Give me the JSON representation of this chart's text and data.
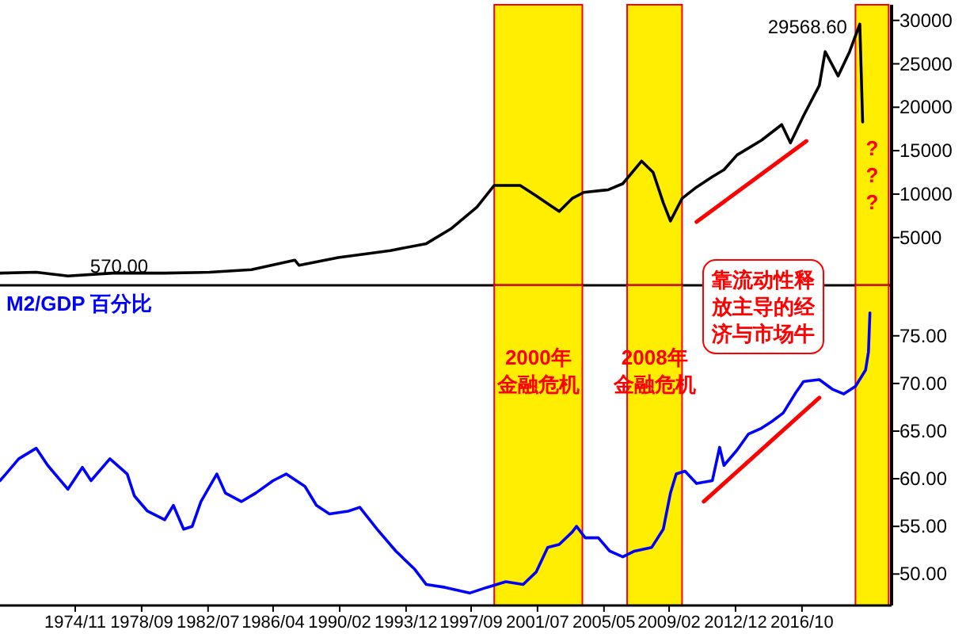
{
  "chart_data": [
    {
      "type": "line",
      "xlim": [
        "1970-07",
        "2021-12"
      ],
      "ylim": [
        -500,
        31800
      ],
      "yticks": [
        5000,
        10000,
        15000,
        20000,
        25000,
        30000
      ],
      "tick_labels": "y",
      "x": [
        "1970-07",
        "1972-08",
        "1974-06",
        "1977-01",
        "1980-01",
        "1982-08",
        "1985-01",
        "1987-07",
        "1987-10",
        "1990-01",
        "1993-01",
        "1995-02",
        "1996-07",
        "1998-01",
        "1999-01",
        "2000-07",
        "2001-06",
        "2002-10",
        "2003-07",
        "2004-03",
        "2005-08",
        "2006-06",
        "2007-07",
        "2008-03",
        "2008-10",
        "2009-03",
        "2009-11",
        "2010-09",
        "2011-08",
        "2012-04",
        "2013-01",
        "2014-06",
        "2015-08",
        "2016-02",
        "2016-11",
        "2017-10",
        "2018-02",
        "2018-11",
        "2019-07",
        "2020-02",
        "2020-04"
      ],
      "series": [
        {
          "color": "#000000",
          "values": [
            900,
            1000,
            570,
            900,
            900,
            1000,
            1300,
            2400,
            1800,
            2700,
            3500,
            4300,
            6000,
            8500,
            11000,
            11000,
            9800,
            8000,
            9500,
            10200,
            10500,
            11200,
            13800,
            12500,
            9000,
            6900,
            9500,
            10800,
            12000,
            12800,
            14500,
            16200,
            18000,
            15900,
            19000,
            22500,
            26400,
            23600,
            26400,
            29568.6,
            18300
          ]
        },
        {
          "type": "line",
          "color": "#ff0000",
          "x": [
            "2010-09",
            "2017-01"
          ],
          "values": [
            6800,
            16100
          ]
        }
      ],
      "annotations": [
        {
          "text": "29568.60",
          "x": "2020-02",
          "y": 29568.6
        },
        {
          "text": "570.00",
          "x": "1974-06",
          "y": 570
        }
      ],
      "bands": [
        {
          "axis": "x",
          "from": "1999-01",
          "to": "2004-02",
          "color": "#ffee00"
        },
        {
          "axis": "x",
          "from": "2006-09",
          "to": "2009-11",
          "color": "#ffee00"
        },
        {
          "axis": "x",
          "from": "2019-11",
          "to": "2021-10",
          "color": "#ffee00",
          "label": "???"
        }
      ]
    },
    {
      "type": "line",
      "title": "M2/GDP 百分比",
      "xlim": [
        "1970-07",
        "2021-12"
      ],
      "ylim": [
        46.7,
        80.3
      ],
      "yticks": [
        {
          "value": 50,
          "label": "50.00"
        },
        {
          "value": 55,
          "label": "55.00"
        },
        {
          "value": 60,
          "label": "60.00"
        },
        {
          "value": 65,
          "label": "65.00"
        },
        {
          "value": 70,
          "label": "70.00"
        },
        {
          "value": 75,
          "label": "75.00"
        }
      ],
      "xticks": [
        {
          "value": "1974-11",
          "label": "1974/11"
        },
        {
          "value": "1978-09",
          "label": "1978/09"
        },
        {
          "value": "1982-07",
          "label": "1982/07"
        },
        {
          "value": "1986-04",
          "label": "1986/04"
        },
        {
          "value": "1990-02",
          "label": "1990/02"
        },
        {
          "value": "1993-12",
          "label": "1993/12"
        },
        {
          "value": "1997-09",
          "label": "1997/09"
        },
        {
          "value": "2001-07",
          "label": "2001/07"
        },
        {
          "value": "2005-05",
          "label": "2005/05"
        },
        {
          "value": "2009-02",
          "label": "2009/02"
        },
        {
          "value": "2012-12",
          "label": "2012/12"
        },
        {
          "value": "2016-10",
          "label": "2016/10"
        }
      ],
      "x": [
        "1970-07",
        "1970-11",
        "1971-08",
        "1972-08",
        "1973-04",
        "1974-06",
        "1975-04",
        "1975-10",
        "1976-11",
        "1977-11",
        "1978-04",
        "1979-01",
        "1980-01",
        "1980-07",
        "1981-02",
        "1981-08",
        "1982-02",
        "1983-01",
        "1983-07",
        "1984-06",
        "1985-04",
        "1986-04",
        "1987-01",
        "1988-02",
        "1988-10",
        "1989-07",
        "1990-08",
        "1991-04",
        "1992-04",
        "1993-05",
        "1994-06",
        "1995-02",
        "1996-03",
        "1997-08",
        "1998-08",
        "1999-09",
        "2000-09",
        "2001-06",
        "2002-02",
        "2002-10",
        "2003-07",
        "2003-10",
        "2004-04",
        "2005-01",
        "2005-09",
        "2006-06",
        "2007-02",
        "2008-02",
        "2008-10",
        "2009-03",
        "2009-07",
        "2010-01",
        "2010-09",
        "2011-08",
        "2012-01",
        "2012-04",
        "2013-01",
        "2013-09",
        "2014-06",
        "2015-01",
        "2015-09",
        "2016-06",
        "2016-11",
        "2017-10",
        "2018-07",
        "2019-03",
        "2019-11",
        "2020-06",
        "2020-08",
        "2020-09"
      ],
      "series": [
        {
          "color": "#0000ff",
          "values": [
            59.8,
            60.5,
            62.1,
            63.2,
            61.4,
            58.9,
            61.2,
            59.8,
            62.1,
            60.5,
            58.2,
            56.6,
            55.7,
            57.2,
            54.7,
            55.0,
            57.6,
            60.5,
            58.5,
            57.6,
            58.5,
            59.8,
            60.5,
            59.2,
            57.2,
            56.3,
            56.6,
            57.0,
            54.7,
            52.4,
            50.5,
            48.9,
            48.6,
            48.0,
            48.6,
            49.2,
            48.9,
            50.2,
            52.8,
            53.1,
            54.4,
            55.0,
            53.8,
            53.8,
            52.4,
            51.8,
            52.4,
            52.8,
            54.7,
            58.5,
            60.5,
            60.8,
            59.5,
            59.8,
            63.3,
            61.4,
            63.0,
            64.7,
            65.3,
            66.0,
            66.9,
            69.1,
            70.2,
            70.4,
            69.4,
            68.9,
            69.7,
            71.4,
            73.3,
            77.4
          ]
        },
        {
          "type": "line",
          "color": "#ff0000",
          "x": [
            "2011-02",
            "2017-10"
          ],
          "values": [
            57.6,
            68.5
          ]
        }
      ],
      "annotations": [
        "靠流动性释放主导的经济与市场牛"
      ],
      "bands": [
        {
          "axis": "x",
          "from": "1999-01",
          "to": "2004-02",
          "color": "#ffee00",
          "label": "2000年金融危机"
        },
        {
          "axis": "x",
          "from": "2006-09",
          "to": "2009-11",
          "color": "#ffee00",
          "label": "2008年金融危机"
        },
        {
          "axis": "x",
          "from": "2019-11",
          "to": "2021-10",
          "color": "#ffee00"
        }
      ]
    }
  ]
}
